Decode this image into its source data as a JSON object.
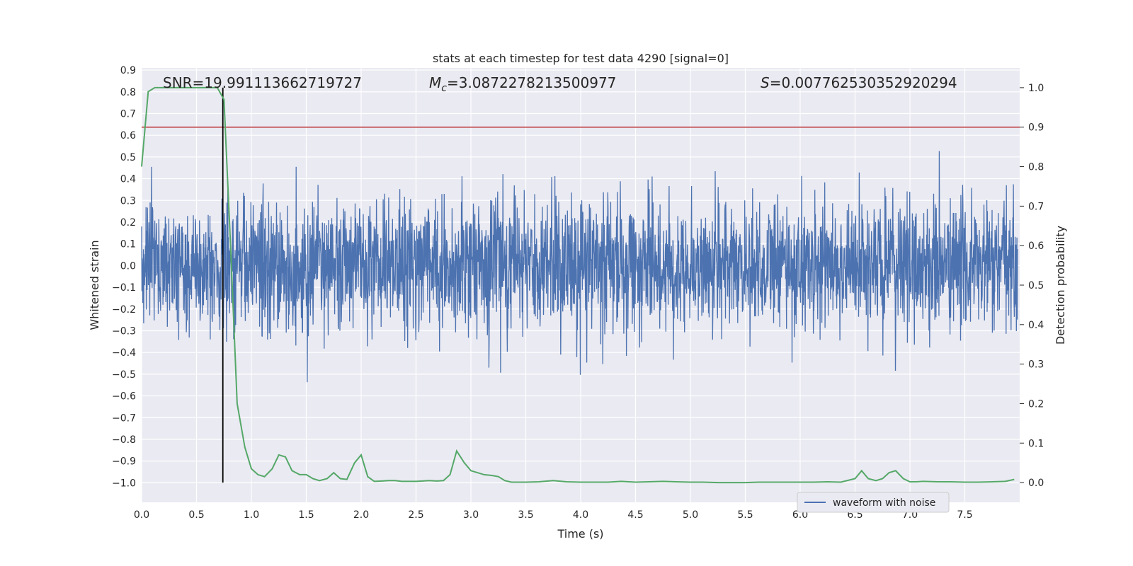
{
  "chart_data": {
    "type": "line",
    "title": "stats at each timestep for test data 4290 [signal=0]",
    "xlabel": "Time (s)",
    "ylabel_left": "Whitened strain",
    "ylabel_right": "Detection probability",
    "xlim": [
      0.0,
      8.0
    ],
    "ylim_left": [
      -1.09,
      0.91
    ],
    "ylim_right": [
      -0.05,
      1.05
    ],
    "x_ticks": [
      "0.0",
      "0.5",
      "1.0",
      "1.5",
      "2.0",
      "2.5",
      "3.0",
      "3.5",
      "4.0",
      "4.5",
      "5.0",
      "5.5",
      "6.0",
      "6.5",
      "7.0",
      "7.5"
    ],
    "y_ticks_left": [
      "0.9",
      "0.8",
      "0.7",
      "0.6",
      "0.5",
      "0.4",
      "0.3",
      "0.2",
      "0.1",
      "0.0",
      "−0.1",
      "−0.2",
      "−0.3",
      "−0.4",
      "−0.5",
      "−0.6",
      "−0.7",
      "−0.8",
      "−0.9",
      "−1.0"
    ],
    "y_ticks_right": [
      "1.0",
      "0.9",
      "0.8",
      "0.7",
      "0.6",
      "0.5",
      "0.4",
      "0.3",
      "0.2",
      "0.1",
      "0.0"
    ],
    "annotations": {
      "snr": "SNR=19.991113662719727",
      "mc_symbol": "M",
      "mc_sub": "c",
      "mc_value": "=3.0872278213500977",
      "s_symbol": "S",
      "s_value": "=0.007762530352920294"
    },
    "threshold_probability": 0.9,
    "vertical_marker_time": 0.74,
    "series": [
      {
        "name": "waveform with noise",
        "axis": "left",
        "color": "#4c72b0",
        "description_of_envelope": "dense noise, mostly within ±0.3, spikes to about ±0.8"
      },
      {
        "axis": "right",
        "color": "#55a868",
        "x": [
          0.0,
          0.06,
          0.12,
          0.19,
          0.25,
          0.31,
          0.37,
          0.44,
          0.5,
          0.56,
          0.62,
          0.69,
          0.75,
          0.81,
          0.87,
          0.94,
          1.0,
          1.06,
          1.12,
          1.19,
          1.25,
          1.31,
          1.37,
          1.44,
          1.5,
          1.56,
          1.62,
          1.69,
          1.75,
          1.81,
          1.87,
          1.94,
          2.0,
          2.06,
          2.12,
          2.19,
          2.25,
          2.31,
          2.37,
          2.44,
          2.5,
          2.56,
          2.62,
          2.69,
          2.75,
          2.81,
          2.87,
          2.94,
          3.0,
          3.06,
          3.12,
          3.19,
          3.25,
          3.31,
          3.37,
          3.44,
          3.5,
          3.62,
          3.75,
          3.87,
          4.0,
          4.12,
          4.25,
          4.37,
          4.5,
          4.62,
          4.75,
          4.87,
          5.0,
          5.12,
          5.25,
          5.37,
          5.5,
          5.62,
          5.75,
          5.87,
          6.0,
          6.12,
          6.25,
          6.37,
          6.5,
          6.56,
          6.62,
          6.69,
          6.75,
          6.81,
          6.87,
          6.94,
          7.0,
          7.06,
          7.12,
          7.25,
          7.37,
          7.5,
          7.62,
          7.75,
          7.87,
          7.95
        ],
        "values": [
          0.8,
          0.99,
          1.0,
          1.0,
          1.0,
          1.0,
          1.0,
          1.0,
          1.0,
          1.0,
          1.0,
          1.0,
          0.97,
          0.6,
          0.2,
          0.09,
          0.035,
          0.02,
          0.015,
          0.035,
          0.07,
          0.065,
          0.03,
          0.02,
          0.02,
          0.01,
          0.005,
          0.01,
          0.025,
          0.01,
          0.008,
          0.05,
          0.07,
          0.015,
          0.003,
          0.004,
          0.005,
          0.005,
          0.003,
          0.003,
          0.003,
          0.004,
          0.005,
          0.004,
          0.005,
          0.02,
          0.08,
          0.05,
          0.03,
          0.025,
          0.02,
          0.018,
          0.015,
          0.005,
          0.001,
          0.001,
          0.001,
          0.002,
          0.005,
          0.002,
          0.001,
          0.001,
          0.001,
          0.003,
          0.001,
          0.002,
          0.003,
          0.002,
          0.001,
          0.001,
          0.0,
          0.0,
          0.0,
          0.001,
          0.001,
          0.001,
          0.001,
          0.001,
          0.002,
          0.001,
          0.01,
          0.03,
          0.01,
          0.005,
          0.01,
          0.025,
          0.03,
          0.01,
          0.002,
          0.002,
          0.003,
          0.002,
          0.002,
          0.001,
          0.001,
          0.002,
          0.003,
          0.008
        ]
      }
    ],
    "legend": {
      "placement": "lower-right",
      "entries": [
        "waveform with noise"
      ]
    },
    "grid": true
  }
}
